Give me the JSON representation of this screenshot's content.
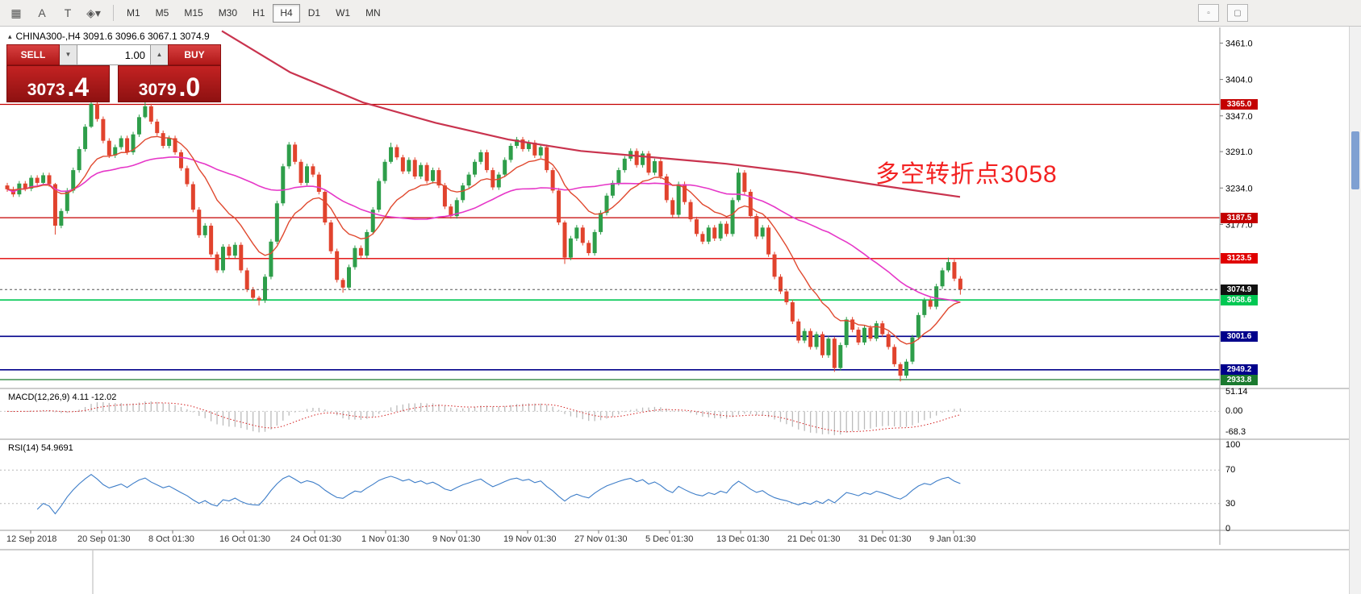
{
  "toolbar": {
    "tools": [
      {
        "name": "crosshair-grid-icon",
        "glyph": "▦"
      },
      {
        "name": "cursor-tool-icon",
        "glyph": "A"
      },
      {
        "name": "text-tool-icon",
        "glyph": "T"
      },
      {
        "name": "shapes-tool-icon",
        "glyph": "◈▾"
      }
    ],
    "timeframes": [
      "M1",
      "M5",
      "M15",
      "M30",
      "H1",
      "H4",
      "D1",
      "W1",
      "MN"
    ],
    "active_timeframe": "H4",
    "right_icons": [
      {
        "name": "dots-icon",
        "glyph": "▫"
      },
      {
        "name": "window-box-icon",
        "glyph": "▢"
      }
    ]
  },
  "chart_header": {
    "collapse_icon": "▴",
    "symbol_line": "CHINA300-,H4  3091.6 3096.6 3067.1 3074.9"
  },
  "trade_panel": {
    "sell_label": "SELL",
    "buy_label": "BUY",
    "volume": "1.00",
    "down_arrow": "▼",
    "up_arrow": "▲",
    "sell_price_main": "3073",
    "sell_price_frac": ".4",
    "buy_price_main": "3079",
    "buy_price_frac": ".0"
  },
  "annotation": {
    "text": "多空转折点3058",
    "color": "#f32222"
  },
  "colors": {
    "up": "#2e9e4a",
    "down": "#e1432d",
    "ma_fast": "#e0492f",
    "ma_medium": "#e637c8",
    "ma_long": "#c9334e",
    "macd_hist": "#bbbbbb",
    "macd_signal": "#d42020",
    "rsi_line": "#3d7dc8",
    "annotation": "#f32222"
  },
  "chart_data": {
    "type": "candlestick",
    "symbol": "CHINA300-",
    "timeframe": "H4",
    "x_labels": [
      "12 Sep 2018",
      "20 Sep 01:30",
      "8 Oct 01:30",
      "16 Oct 01:30",
      "24 Oct 01:30",
      "1 Nov 01:30",
      "9 Nov 01:30",
      "19 Nov 01:30",
      "27 Nov 01:30",
      "5 Dec 01:30",
      "13 Dec 01:30",
      "21 Dec 01:30",
      "31 Dec 01:30",
      "9 Jan 01:30"
    ],
    "y_axis_ticks": [
      {
        "v": 3461.0,
        "label": "3461.0"
      },
      {
        "v": 3404.0,
        "label": "3404.0"
      },
      {
        "v": 3347.0,
        "label": "3347.0"
      },
      {
        "v": 3291.0,
        "label": "3291.0"
      },
      {
        "v": 3234.0,
        "label": "3234.0"
      },
      {
        "v": 3177.0,
        "label": "3177.0"
      }
    ],
    "price_range": {
      "min": 2925,
      "max": 3478
    },
    "first_open": 3238,
    "closes": [
      3232,
      3224,
      3241,
      3233,
      3250,
      3242,
      3254,
      3240,
      3175,
      3198,
      3230,
      3262,
      3295,
      3330,
      3366,
      3342,
      3308,
      3285,
      3298,
      3312,
      3290,
      3318,
      3345,
      3362,
      3338,
      3320,
      3300,
      3312,
      3290,
      3265,
      3240,
      3200,
      3160,
      3175,
      3130,
      3105,
      3142,
      3128,
      3145,
      3105,
      3075,
      3062,
      3058,
      3095,
      3150,
      3210,
      3268,
      3302,
      3275,
      3242,
      3268,
      3255,
      3228,
      3180,
      3135,
      3090,
      3078,
      3110,
      3140,
      3128,
      3165,
      3200,
      3245,
      3275,
      3298,
      3282,
      3260,
      3278,
      3252,
      3270,
      3245,
      3262,
      3238,
      3205,
      3190,
      3215,
      3238,
      3255,
      3275,
      3290,
      3262,
      3235,
      3255,
      3278,
      3300,
      3310,
      3295,
      3305,
      3285,
      3298,
      3262,
      3230,
      3180,
      3125,
      3155,
      3172,
      3148,
      3132,
      3165,
      3195,
      3222,
      3242,
      3262,
      3280,
      3292,
      3270,
      3288,
      3258,
      3276,
      3252,
      3215,
      3192,
      3240,
      3212,
      3185,
      3162,
      3150,
      3172,
      3155,
      3178,
      3162,
      3215,
      3258,
      3228,
      3190,
      3158,
      3172,
      3130,
      3095,
      3072,
      3055,
      3025,
      2995,
      3010,
      2985,
      3005,
      2972,
      2998,
      2952,
      2988,
      3028,
      3012,
      2992,
      3015,
      2998,
      3022,
      3005,
      2985,
      2958,
      2940,
      2962,
      3000,
      3035,
      3058,
      3048,
      3080,
      3105,
      3118,
      3092,
      3074.9
    ],
    "wick_default": 4,
    "wick_overrides": {
      "8": [
        2,
        14
      ],
      "14": [
        8,
        2
      ],
      "23": [
        7,
        2
      ],
      "42": [
        3,
        8
      ],
      "56": [
        3,
        8
      ],
      "64": [
        7,
        3
      ],
      "93": [
        3,
        10
      ],
      "122": [
        7,
        3
      ],
      "138": [
        3,
        6
      ],
      "149": [
        3,
        9
      ],
      "157": [
        7,
        3
      ],
      "159": [
        4,
        8
      ]
    },
    "levels": [
      {
        "price": 3365.0,
        "label": "3365.0",
        "color": "#c40000",
        "width": 1.2
      },
      {
        "price": 3187.5,
        "label": "3187.5",
        "color": "#c40000",
        "width": 1.2
      },
      {
        "price": 3123.5,
        "label": "3123.5",
        "color": "#e00000",
        "width": 1.4
      },
      {
        "price": 3058.6,
        "label": "3058.6",
        "color": "#00c853",
        "width": 1.6
      },
      {
        "price": 3001.6,
        "label": "3001.6",
        "color": "#00008b",
        "width": 1.6
      },
      {
        "price": 2949.2,
        "label": "2949.2",
        "color": "#00008b",
        "width": 1.6
      },
      {
        "price": 2933.8,
        "label": "2933.8",
        "color": "#1b7a2f",
        "width": 1.2
      }
    ],
    "current_price": {
      "v": 3074.9,
      "label": "3074.9"
    },
    "ma": {
      "fast_period": 13,
      "medium_period": 40
    },
    "longterm_ma_points": [
      [
        275,
        3480
      ],
      [
        360,
        3415
      ],
      [
        450,
        3368
      ],
      [
        540,
        3336
      ],
      [
        630,
        3310
      ],
      [
        720,
        3292
      ],
      [
        810,
        3282
      ],
      [
        900,
        3272
      ],
      [
        990,
        3258
      ],
      [
        1080,
        3240
      ],
      [
        1190,
        3220
      ]
    ],
    "macd": {
      "label": "MACD(12,26,9) 4.11 -12.02",
      "params": [
        12,
        26,
        9
      ],
      "value": 4.11,
      "signal_value": -12.02,
      "axis": [
        {
          "v": 51.14,
          "label": "51.14"
        },
        {
          "v": 0,
          "label": "0.00"
        },
        {
          "v": -68.3,
          "label": "-68.3"
        }
      ],
      "range": {
        "min": -68.3,
        "max": 51.14
      }
    },
    "rsi": {
      "label": "RSI(14) 54.9691",
      "period": 14,
      "value": 54.9691,
      "axis": [
        {
          "v": 100,
          "label": "100"
        },
        {
          "v": 70,
          "label": "70"
        },
        {
          "v": 30,
          "label": "30"
        },
        {
          "v": 0,
          "label": "0"
        }
      ],
      "guides": [
        70,
        30
      ]
    }
  }
}
